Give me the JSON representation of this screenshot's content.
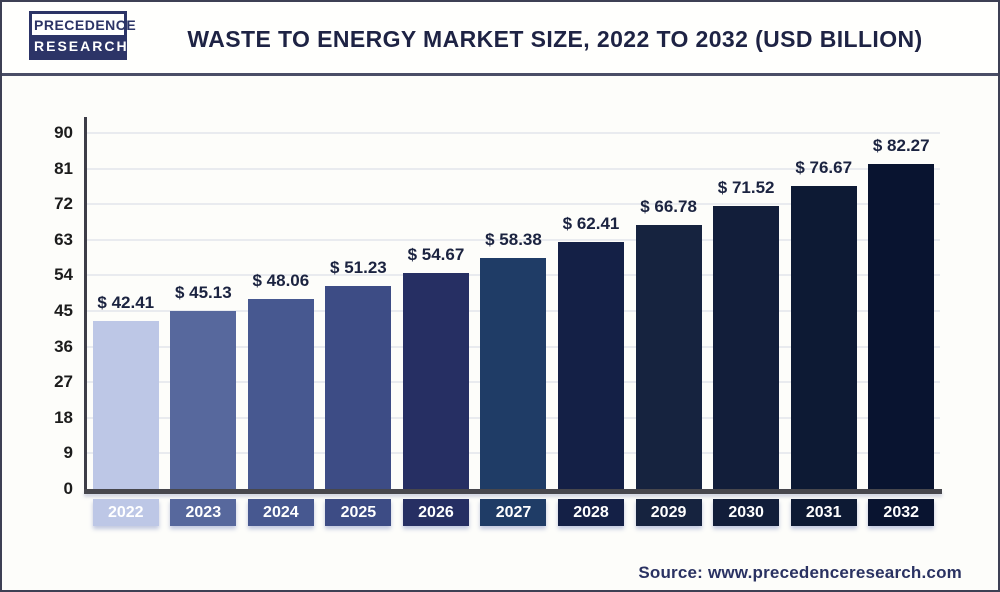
{
  "header": {
    "logo_line1": "PRECEDENCE",
    "logo_line2": "RESEARCH",
    "title": "WASTE TO ENERGY MARKET SIZE, 2022 TO 2032 (USD BILLION)"
  },
  "footer": {
    "source": "Source: www.precedenceresearch.com"
  },
  "chart_data": {
    "type": "bar",
    "title": "Waste to Energy Market Size, 2022 to 2032 (USD Billion)",
    "categories": [
      "2022",
      "2023",
      "2024",
      "2025",
      "2026",
      "2027",
      "2028",
      "2029",
      "2030",
      "2031",
      "2032"
    ],
    "values": [
      42.41,
      45.13,
      48.06,
      51.23,
      54.67,
      58.38,
      62.41,
      66.78,
      71.52,
      76.67,
      82.27
    ],
    "value_labels": [
      "$ 42.41",
      "$ 45.13",
      "$ 48.06",
      "$ 51.23",
      "$ 54.67",
      "$ 58.38",
      "$ 62.41",
      "$ 66.78",
      "$ 71.52",
      "$ 76.67",
      "$ 82.27"
    ],
    "bar_colors": [
      "#bdc7e6",
      "#57689d",
      "#475890",
      "#3d4c85",
      "#262f63",
      "#1f3c66",
      "#142046",
      "#16233f",
      "#121e3a",
      "#0d1a34",
      "#091430"
    ],
    "yticks": [
      0,
      9,
      18,
      27,
      36,
      45,
      54,
      63,
      72,
      81,
      90
    ],
    "ylim": [
      0,
      90
    ],
    "xlabel": "",
    "ylabel": "",
    "grid": true,
    "legend": false
  }
}
